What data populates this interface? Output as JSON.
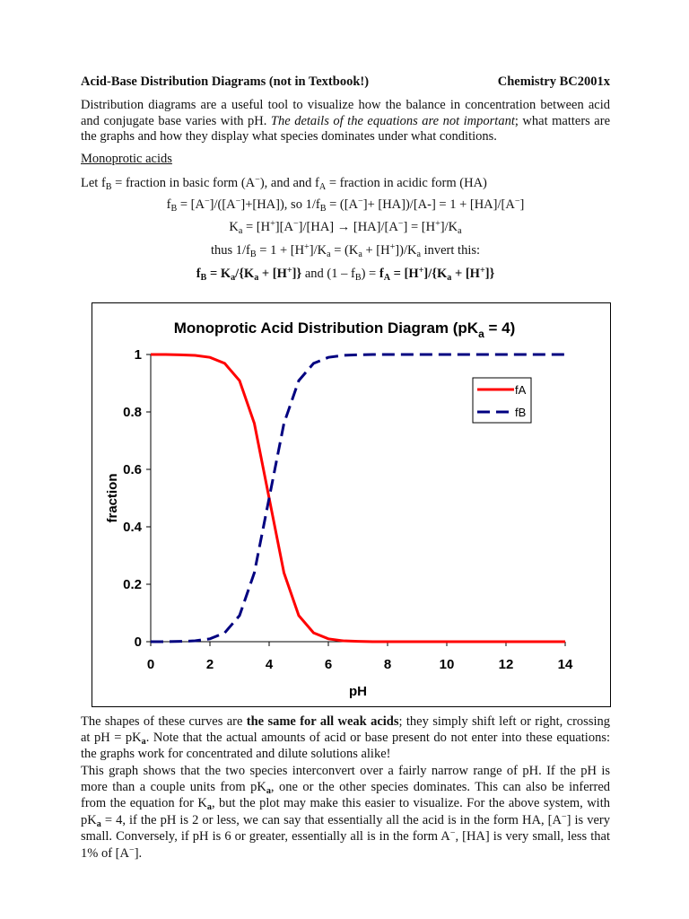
{
  "header": {
    "title": "Acid-Base Distribution Diagrams (not in Textbook!)",
    "course": "Chemistry BC2001x"
  },
  "intro": [
    {
      "text": "Distribution diagrams are a useful tool to visualize how the balance in concentration between acid and conjugate base varies with pH.  "
    },
    {
      "text": "The details of the equations are not important",
      "style": "italic"
    },
    {
      "text": "; what matters are the graphs and how they display what species dominates under what conditions."
    }
  ],
  "section": "Monoprotic acids",
  "equations": [
    [
      {
        "text": "Let f"
      },
      {
        "text": "B",
        "style": "sub"
      },
      {
        "text": " = fraction in basic form (A"
      },
      {
        "text": "−",
        "style": "sup"
      },
      {
        "text": "), and  and  f"
      },
      {
        "text": "A",
        "style": "sub"
      },
      {
        "text": " = fraction in acidic form (HA)"
      }
    ],
    [
      {
        "text": "f"
      },
      {
        "text": "B",
        "style": "sub"
      },
      {
        "text": " = [A"
      },
      {
        "text": "−",
        "style": "sup"
      },
      {
        "text": "]/([A"
      },
      {
        "text": "−",
        "style": "sup"
      },
      {
        "text": "]+[HA]),  so  1/f"
      },
      {
        "text": "B",
        "style": "sub"
      },
      {
        "text": " = ([A"
      },
      {
        "text": "−",
        "style": "sup"
      },
      {
        "text": "]+ [HA])/[A-] = 1 + [HA]/[A"
      },
      {
        "text": "−",
        "style": "sup"
      },
      {
        "text": "]"
      }
    ],
    [
      {
        "text": "K"
      },
      {
        "text": "a",
        "style": "sub"
      },
      {
        "text": " = [H"
      },
      {
        "text": "+",
        "style": "sup"
      },
      {
        "text": "][A"
      },
      {
        "text": "−",
        "style": "sup"
      },
      {
        "text": "]/[HA]  → [HA]/[A"
      },
      {
        "text": "−",
        "style": "sup"
      },
      {
        "text": "] = [H"
      },
      {
        "text": "+",
        "style": "sup"
      },
      {
        "text": "]/K"
      },
      {
        "text": "a",
        "style": "sub"
      }
    ],
    [
      {
        "text": "thus  1/f"
      },
      {
        "text": "B",
        "style": "sub"
      },
      {
        "text": " = 1 + [H"
      },
      {
        "text": "+",
        "style": "sup"
      },
      {
        "text": "]/K"
      },
      {
        "text": "a",
        "style": "sub"
      },
      {
        "text": " = (K"
      },
      {
        "text": "a",
        "style": "sub"
      },
      {
        "text": " + [H"
      },
      {
        "text": "+",
        "style": "sup"
      },
      {
        "text": "])/K"
      },
      {
        "text": "a",
        "style": "sub"
      },
      {
        "text": "   invert this:"
      }
    ],
    [
      {
        "text": "f",
        "style": "bold"
      },
      {
        "text": "B",
        "style": "bold sub"
      },
      {
        "text": " = K",
        "style": "bold"
      },
      {
        "text": "a",
        "style": "bold sub"
      },
      {
        "text": "/{K",
        "style": "bold"
      },
      {
        "text": "a",
        "style": "bold sub"
      },
      {
        "text": " + [H",
        "style": "bold"
      },
      {
        "text": "+",
        "style": "bold sup"
      },
      {
        "text": "]}",
        "style": "bold"
      },
      {
        "text": "  and  (1 – f"
      },
      {
        "text": "B",
        "style": "sub"
      },
      {
        "text": ") = "
      },
      {
        "text": "f",
        "style": "bold"
      },
      {
        "text": "A",
        "style": "bold sub"
      },
      {
        "text": " =  [H",
        "style": "bold"
      },
      {
        "text": "+",
        "style": "bold sup"
      },
      {
        "text": "]/{K",
        "style": "bold"
      },
      {
        "text": "a",
        "style": "bold sub"
      },
      {
        "text": " + [H",
        "style": "bold"
      },
      {
        "text": "+",
        "style": "bold sup"
      },
      {
        "text": "]}",
        "style": "bold"
      }
    ]
  ],
  "chart_data": {
    "type": "line",
    "title": [
      {
        "text": "Monoprotic Acid Distribution Diagram (pK"
      },
      {
        "text": "a",
        "style": "sub"
      },
      {
        "text": " = 4)"
      }
    ],
    "xlabel": "pH",
    "ylabel": "fraction",
    "x": [
      0,
      0.5,
      1,
      1.5,
      2,
      2.5,
      3,
      3.5,
      4,
      4.5,
      5,
      5.5,
      6,
      6.5,
      7,
      7.5,
      8,
      8.5,
      9,
      9.5,
      10,
      10.5,
      11,
      11.5,
      12,
      12.5,
      13,
      13.5,
      14
    ],
    "series": [
      {
        "name": "fA",
        "color": "#ff0000",
        "dash": "solid",
        "values": [
          1,
          1,
          0.999,
          0.997,
          0.99,
          0.969,
          0.909,
          0.76,
          0.5,
          0.24,
          0.091,
          0.031,
          0.01,
          0.003,
          0.001,
          0,
          0,
          0,
          0,
          0,
          0,
          0,
          0,
          0,
          0,
          0,
          0,
          0,
          0
        ]
      },
      {
        "name": "fB",
        "color": "#000080",
        "dash": "dashed",
        "values": [
          0,
          0,
          0.001,
          0.003,
          0.01,
          0.031,
          0.091,
          0.24,
          0.5,
          0.76,
          0.909,
          0.969,
          0.99,
          0.997,
          0.999,
          1,
          1,
          1,
          1,
          1,
          1,
          1,
          1,
          1,
          1,
          1,
          1,
          1,
          1
        ]
      }
    ],
    "xlim": [
      0,
      14
    ],
    "xticks": [
      0,
      2,
      4,
      6,
      8,
      10,
      12,
      14
    ],
    "ylim": [
      0,
      1
    ],
    "yticks": [
      0,
      0.2,
      0.4,
      0.6,
      0.8,
      1
    ],
    "grid": false,
    "legend": "upper right"
  },
  "paragraphs": [
    [
      {
        "text": "The shapes of these curves are "
      },
      {
        "text": "the same for all weak acids",
        "style": "bold"
      },
      {
        "text": "; they simply shift left or right, crossing at pH = pK"
      },
      {
        "text": "a",
        "style": "bold sub"
      },
      {
        "text": ".  Note that the actual amounts of acid or base present do not enter into these equations: the graphs work for concentrated and dilute solutions alike!"
      }
    ],
    [
      {
        "text": "This graph shows that the two species interconvert over a fairly narrow range of pH.  If the pH is more than a couple units from pK"
      },
      {
        "text": "a",
        "style": "bold sub"
      },
      {
        "text": ", one or the other species dominates.  This can also be inferred from the equation for K"
      },
      {
        "text": "a",
        "style": "bold sub"
      },
      {
        "text": ", but the plot may make this easier to visualize.  For the above system, with pK"
      },
      {
        "text": "a",
        "style": "bold sub"
      },
      {
        "text": " = 4, if the pH is 2 or less, we can say that essentially all the acid is in the form HA, [A"
      },
      {
        "text": "−",
        "style": "sup"
      },
      {
        "text": "] is very small.  Conversely, if pH is 6 or greater, essentially all is in the form A"
      },
      {
        "text": "−",
        "style": "sup"
      },
      {
        "text": ", [HA] is very small, less that 1% of [A"
      },
      {
        "text": "−",
        "style": "sup"
      },
      {
        "text": "]."
      }
    ]
  ]
}
